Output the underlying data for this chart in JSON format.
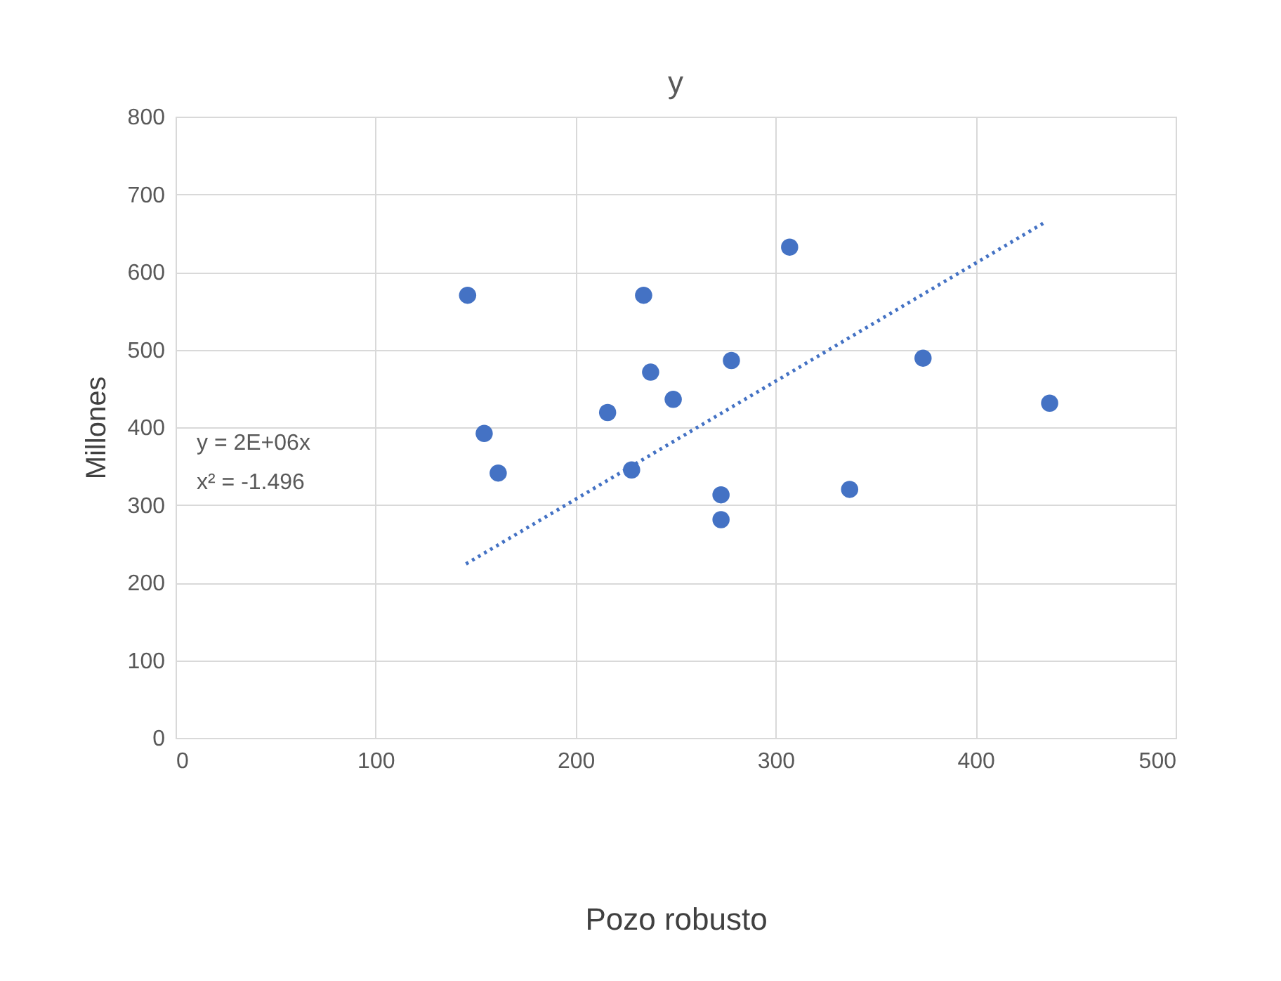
{
  "chart_data": {
    "type": "scatter",
    "title": "y",
    "xlabel": "Pozo robusto",
    "ylabel": "Millones",
    "xlim": [
      0,
      500
    ],
    "xticks": [
      0,
      100,
      200,
      300,
      400,
      500
    ],
    "ylim": [
      0,
      800
    ],
    "yticks": [
      0,
      100,
      200,
      300,
      400,
      500,
      600,
      700,
      800
    ],
    "grid": true,
    "annotations": [
      "y = 2E+06x",
      "x² = -1.496"
    ],
    "series": [
      {
        "color": "#4472c4",
        "marker": "circle",
        "x": [
          146,
          154.3,
          161.3,
          216,
          228,
          234,
          237.5,
          248.8,
          272.7,
          272.7,
          277.9,
          307,
          337,
          373.7,
          437
        ],
        "values": [
          570,
          392,
          341,
          419,
          345,
          570,
          471,
          436,
          313,
          281,
          486,
          632,
          320,
          489,
          431
        ]
      },
      {
        "type": "line",
        "color": "#4472c4",
        "line_style": "dotted",
        "x": [
          145.2,
          434
        ],
        "values": [
          224,
          663
        ]
      }
    ]
  }
}
